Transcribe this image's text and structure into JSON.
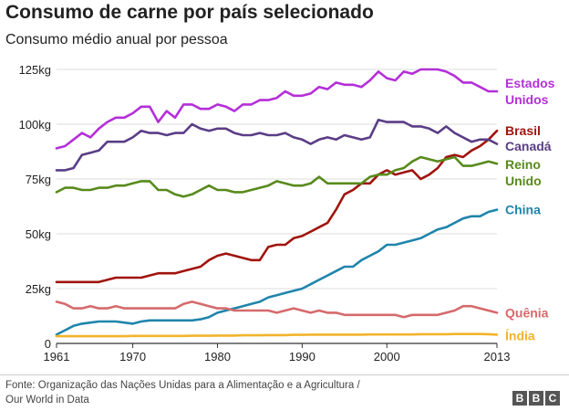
{
  "title": "Consumo de carne por país selecionado",
  "subtitle": "Consumo médio anual por pessoa",
  "footer": {
    "line1": "Fonte: Organização das Nações Unidas para a Alimentação e a Agricultura /",
    "line2": "Our World in Data"
  },
  "logo": {
    "letters": [
      "B",
      "B",
      "C"
    ]
  },
  "chart_data": {
    "type": "line",
    "title": "Consumo de carne por país selecionado",
    "subtitle": "Consumo médio anual por pessoa",
    "xlabel": "",
    "ylabel": "",
    "xlim": [
      1961,
      2013
    ],
    "ylim": [
      0,
      125
    ],
    "grid": true,
    "x_ticks": [
      {
        "value": 1961,
        "label": "1961"
      },
      {
        "value": 1970,
        "label": "1970"
      },
      {
        "value": 1980,
        "label": "1980"
      },
      {
        "value": 1990,
        "label": "1990"
      },
      {
        "value": 2000,
        "label": "2000"
      },
      {
        "value": 2013,
        "label": "2013"
      }
    ],
    "y_ticks": [
      {
        "value": 0,
        "label": "0"
      },
      {
        "value": 25,
        "label": "25kg"
      },
      {
        "value": 50,
        "label": "50kg"
      },
      {
        "value": 75,
        "label": "75kg"
      },
      {
        "value": 100,
        "label": "100kg"
      },
      {
        "value": 125,
        "label": "125kg"
      }
    ],
    "series": [
      {
        "key": "usa",
        "name": "Estados Unidos",
        "legend_lines": [
          "Estados",
          "Unidos"
        ],
        "color": "#b42fd8",
        "label_y": 115,
        "x": [
          1961,
          1962,
          1963,
          1964,
          1965,
          1966,
          1967,
          1968,
          1969,
          1970,
          1971,
          1972,
          1973,
          1974,
          1975,
          1976,
          1977,
          1978,
          1979,
          1980,
          1981,
          1982,
          1983,
          1984,
          1985,
          1986,
          1987,
          1988,
          1989,
          1990,
          1991,
          1992,
          1993,
          1994,
          1995,
          1996,
          1997,
          1998,
          1999,
          2000,
          2001,
          2002,
          2003,
          2004,
          2005,
          2006,
          2007,
          2008,
          2009,
          2010,
          2011,
          2012,
          2013
        ],
        "values": [
          89,
          90,
          93,
          96,
          94,
          98,
          101,
          103,
          103,
          105,
          108,
          108,
          101,
          106,
          103,
          109,
          109,
          107,
          107,
          109,
          108,
          106,
          109,
          109,
          111,
          111,
          112,
          115,
          113,
          113,
          114,
          117,
          116,
          119,
          118,
          118,
          117,
          120,
          124,
          121,
          120,
          124,
          123,
          125,
          125,
          125,
          124,
          122,
          119,
          119,
          117,
          115,
          115
        ]
      },
      {
        "key": "brazil",
        "name": "Brasil",
        "legend_lines": [
          "Brasil"
        ],
        "color": "#a0140e",
        "label_y": 97,
        "x": [
          1961,
          1962,
          1963,
          1964,
          1965,
          1966,
          1967,
          1968,
          1969,
          1970,
          1971,
          1972,
          1973,
          1974,
          1975,
          1976,
          1977,
          1978,
          1979,
          1980,
          1981,
          1982,
          1983,
          1984,
          1985,
          1986,
          1987,
          1988,
          1989,
          1990,
          1991,
          1992,
          1993,
          1994,
          1995,
          1996,
          1997,
          1998,
          1999,
          2000,
          2001,
          2002,
          2003,
          2004,
          2005,
          2006,
          2007,
          2008,
          2009,
          2010,
          2011,
          2012,
          2013
        ],
        "values": [
          28,
          28,
          28,
          28,
          28,
          28,
          29,
          30,
          30,
          30,
          30,
          31,
          32,
          32,
          32,
          33,
          34,
          35,
          38,
          40,
          41,
          40,
          39,
          38,
          38,
          44,
          45,
          45,
          48,
          49,
          51,
          53,
          55,
          61,
          68,
          70,
          73,
          73,
          77,
          79,
          77,
          78,
          79,
          75,
          77,
          80,
          85,
          86,
          85,
          88,
          90,
          93,
          97
        ]
      },
      {
        "key": "canada",
        "name": "Canadá",
        "legend_lines": [
          "Canadá"
        ],
        "color": "#5a3d86",
        "label_y": 90,
        "x": [
          1961,
          1962,
          1963,
          1964,
          1965,
          1966,
          1967,
          1968,
          1969,
          1970,
          1971,
          1972,
          1973,
          1974,
          1975,
          1976,
          1977,
          1978,
          1979,
          1980,
          1981,
          1982,
          1983,
          1984,
          1985,
          1986,
          1987,
          1988,
          1989,
          1990,
          1991,
          1992,
          1993,
          1994,
          1995,
          1996,
          1997,
          1998,
          1999,
          2000,
          2001,
          2002,
          2003,
          2004,
          2005,
          2006,
          2007,
          2008,
          2009,
          2010,
          2011,
          2012,
          2013
        ],
        "values": [
          79,
          79,
          80,
          86,
          87,
          88,
          92,
          92,
          92,
          94,
          97,
          96,
          96,
          95,
          96,
          96,
          100,
          98,
          97,
          98,
          98,
          96,
          95,
          95,
          96,
          95,
          95,
          96,
          94,
          93,
          91,
          93,
          94,
          93,
          95,
          94,
          93,
          94,
          102,
          101,
          101,
          101,
          99,
          99,
          98,
          96,
          99,
          96,
          94,
          92,
          93,
          93,
          91
        ]
      },
      {
        "key": "uk",
        "name": "Reino Unido",
        "legend_lines": [
          "Reino",
          "Unido"
        ],
        "color": "#588a1c",
        "label_y": 78,
        "x": [
          1961,
          1962,
          1963,
          1964,
          1965,
          1966,
          1967,
          1968,
          1969,
          1970,
          1971,
          1972,
          1973,
          1974,
          1975,
          1976,
          1977,
          1978,
          1979,
          1980,
          1981,
          1982,
          1983,
          1984,
          1985,
          1986,
          1987,
          1988,
          1989,
          1990,
          1991,
          1992,
          1993,
          1994,
          1995,
          1996,
          1997,
          1998,
          1999,
          2000,
          2001,
          2002,
          2003,
          2004,
          2005,
          2006,
          2007,
          2008,
          2009,
          2010,
          2011,
          2012,
          2013
        ],
        "values": [
          69,
          71,
          71,
          70,
          70,
          71,
          71,
          72,
          72,
          73,
          74,
          74,
          70,
          70,
          68,
          67,
          68,
          70,
          72,
          70,
          70,
          69,
          69,
          70,
          71,
          72,
          74,
          73,
          72,
          72,
          73,
          76,
          73,
          73,
          73,
          73,
          73,
          76,
          77,
          77,
          79,
          80,
          83,
          85,
          84,
          83,
          84,
          85,
          81,
          81,
          82,
          83,
          82
        ]
      },
      {
        "key": "china",
        "name": "China",
        "legend_lines": [
          "China"
        ],
        "color": "#1f85ab",
        "label_y": 61,
        "x": [
          1961,
          1962,
          1963,
          1964,
          1965,
          1966,
          1967,
          1968,
          1969,
          1970,
          1971,
          1972,
          1973,
          1974,
          1975,
          1976,
          1977,
          1978,
          1979,
          1980,
          1981,
          1982,
          1983,
          1984,
          1985,
          1986,
          1987,
          1988,
          1989,
          1990,
          1991,
          1992,
          1993,
          1994,
          1995,
          1996,
          1997,
          1998,
          1999,
          2000,
          2001,
          2002,
          2003,
          2004,
          2005,
          2006,
          2007,
          2008,
          2009,
          2010,
          2011,
          2012,
          2013
        ],
        "values": [
          4,
          6,
          8,
          9,
          9.5,
          10,
          10,
          10,
          9.5,
          9,
          10,
          10.5,
          10.5,
          10.5,
          10.5,
          10.5,
          10.5,
          11,
          12,
          14,
          15,
          16,
          17,
          18,
          19,
          21,
          22,
          23,
          24,
          25,
          27,
          29,
          31,
          33,
          35,
          35,
          38,
          40,
          42,
          45,
          45,
          46,
          47,
          48,
          50,
          52,
          53,
          55,
          57,
          58,
          58,
          60,
          61
        ]
      },
      {
        "key": "kenya",
        "name": "Quênia",
        "legend_lines": [
          "Quênia"
        ],
        "color": "#d56a6c",
        "label_y": 14,
        "x": [
          1961,
          1962,
          1963,
          1964,
          1965,
          1966,
          1967,
          1968,
          1969,
          1970,
          1971,
          1972,
          1973,
          1974,
          1975,
          1976,
          1977,
          1978,
          1979,
          1980,
          1981,
          1982,
          1983,
          1984,
          1985,
          1986,
          1987,
          1988,
          1989,
          1990,
          1991,
          1992,
          1993,
          1994,
          1995,
          1996,
          1997,
          1998,
          1999,
          2000,
          2001,
          2002,
          2003,
          2004,
          2005,
          2006,
          2007,
          2008,
          2009,
          2010,
          2011,
          2012,
          2013
        ],
        "values": [
          19,
          18,
          16,
          16,
          17,
          16,
          16,
          17,
          16,
          16,
          16,
          16,
          16,
          16,
          16,
          18,
          19,
          18,
          17,
          16,
          16,
          15,
          15,
          15,
          15,
          15,
          14,
          15,
          16,
          15,
          14,
          15,
          14,
          14,
          13,
          13,
          13,
          13,
          13,
          13,
          13,
          12,
          13,
          13,
          13,
          13,
          14,
          15,
          17,
          17,
          16,
          15,
          14
        ]
      },
      {
        "key": "india",
        "name": "Índia",
        "legend_lines": [
          "Índia"
        ],
        "color": "#f2b42c",
        "label_y": 3.5,
        "x": [
          1961,
          1962,
          1963,
          1964,
          1965,
          1966,
          1967,
          1968,
          1969,
          1970,
          1971,
          1972,
          1973,
          1974,
          1975,
          1976,
          1977,
          1978,
          1979,
          1980,
          1981,
          1982,
          1983,
          1984,
          1985,
          1986,
          1987,
          1988,
          1989,
          1990,
          1991,
          1992,
          1993,
          1994,
          1995,
          1996,
          1997,
          1998,
          1999,
          2000,
          2001,
          2002,
          2003,
          2004,
          2005,
          2006,
          2007,
          2008,
          2009,
          2010,
          2011,
          2012,
          2013
        ],
        "values": [
          3.3,
          3.3,
          3.3,
          3.3,
          3.3,
          3.3,
          3.3,
          3.3,
          3.3,
          3.4,
          3.4,
          3.4,
          3.4,
          3.4,
          3.4,
          3.4,
          3.5,
          3.5,
          3.5,
          3.6,
          3.6,
          3.6,
          3.7,
          3.7,
          3.7,
          3.8,
          3.8,
          3.8,
          3.9,
          3.9,
          4,
          4,
          4,
          4,
          4,
          4,
          4,
          4.1,
          4.1,
          4.1,
          4.1,
          4.1,
          4.1,
          4.2,
          4.2,
          4.2,
          4.2,
          4.3,
          4.3,
          4.3,
          4.3,
          4.2,
          4
        ]
      }
    ]
  }
}
